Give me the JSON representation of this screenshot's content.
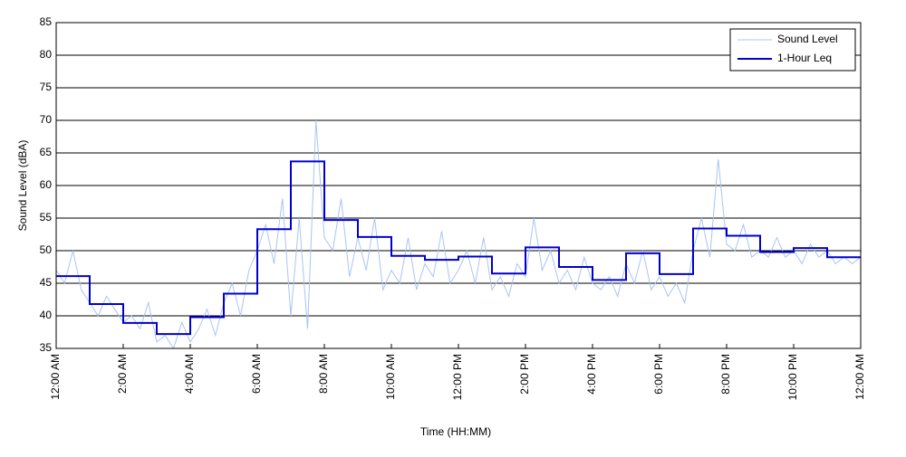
{
  "chart_data": {
    "type": "line",
    "xlabel": "Time (HH:MM)",
    "ylabel": "Sound Level (dBA)",
    "xlim": [
      0,
      24
    ],
    "ylim": [
      35,
      85
    ],
    "xticks": [
      {
        "value": 0,
        "label": "12:00 AM"
      },
      {
        "value": 2,
        "label": "2:00 AM"
      },
      {
        "value": 4,
        "label": "4:00 AM"
      },
      {
        "value": 6,
        "label": "6:00 AM"
      },
      {
        "value": 8,
        "label": "8:00 AM"
      },
      {
        "value": 10,
        "label": "10:00 AM"
      },
      {
        "value": 12,
        "label": "12:00 PM"
      },
      {
        "value": 14,
        "label": "2:00 PM"
      },
      {
        "value": 16,
        "label": "4:00 PM"
      },
      {
        "value": 18,
        "label": "6:00 PM"
      },
      {
        "value": 20,
        "label": "8:00 PM"
      },
      {
        "value": 22,
        "label": "10:00 PM"
      },
      {
        "value": 24,
        "label": "12:00 AM"
      }
    ],
    "yticks": [
      35,
      40,
      45,
      50,
      55,
      60,
      65,
      70,
      75,
      80,
      85
    ],
    "grid": true,
    "legend": "upper right",
    "series": [
      {
        "name": "Sound Level",
        "color": "#a9c4f5",
        "style": "line",
        "x": [
          0,
          0.25,
          0.5,
          0.75,
          1,
          1.25,
          1.5,
          1.75,
          2,
          2.25,
          2.5,
          2.75,
          3,
          3.25,
          3.5,
          3.75,
          4,
          4.25,
          4.5,
          4.75,
          5,
          5.25,
          5.5,
          5.75,
          6,
          6.25,
          6.5,
          6.75,
          7,
          7.25,
          7.5,
          7.75,
          8,
          8.25,
          8.5,
          8.75,
          9,
          9.25,
          9.5,
          9.75,
          10,
          10.25,
          10.5,
          10.75,
          11,
          11.25,
          11.5,
          11.75,
          12,
          12.25,
          12.5,
          12.75,
          13,
          13.25,
          13.5,
          13.75,
          14,
          14.25,
          14.5,
          14.75,
          15,
          15.25,
          15.5,
          15.75,
          16,
          16.25,
          16.5,
          16.75,
          17,
          17.25,
          17.5,
          17.75,
          18,
          18.25,
          18.5,
          18.75,
          19,
          19.25,
          19.5,
          19.75,
          20,
          20.25,
          20.5,
          20.75,
          21,
          21.25,
          21.5,
          21.75,
          22,
          22.25,
          22.5,
          22.75,
          23,
          23.25,
          23.5,
          23.75,
          24
        ],
        "values": [
          47,
          45,
          50,
          44,
          42,
          40,
          43,
          41,
          39,
          40,
          38,
          42,
          36,
          37,
          35,
          39,
          36,
          38,
          41,
          37,
          42,
          45,
          40,
          47,
          50,
          54,
          48,
          58,
          40,
          55,
          38,
          70,
          52,
          50,
          58,
          46,
          52,
          47,
          55,
          44,
          47,
          45,
          52,
          44,
          48,
          46,
          53,
          45,
          47,
          50,
          45,
          52,
          44,
          46,
          43,
          48,
          46,
          55,
          47,
          50,
          45,
          47,
          44,
          49,
          45,
          44,
          46,
          43,
          48,
          45,
          50,
          44,
          46,
          43,
          45,
          42,
          50,
          55,
          49,
          64,
          51,
          50,
          54,
          49,
          50,
          49,
          52,
          49,
          50,
          48,
          51,
          49,
          50,
          48,
          49,
          48,
          49
        ]
      },
      {
        "name": "1-Hour Leq",
        "color": "#0000cc",
        "style": "step",
        "x": [
          0,
          1,
          2,
          3,
          4,
          5,
          6,
          7,
          8,
          9,
          10,
          11,
          12,
          13,
          14,
          15,
          16,
          17,
          18,
          19,
          20,
          21,
          22,
          23
        ],
        "values": [
          46.1,
          41.8,
          38.9,
          37.2,
          39.8,
          43.4,
          53.3,
          63.7,
          54.7,
          52.1,
          49.2,
          48.6,
          49.1,
          46.5,
          50.5,
          47.5,
          45.5,
          49.6,
          46.4,
          53.4,
          52.3,
          49.8,
          50.4,
          49.0
        ]
      }
    ]
  }
}
